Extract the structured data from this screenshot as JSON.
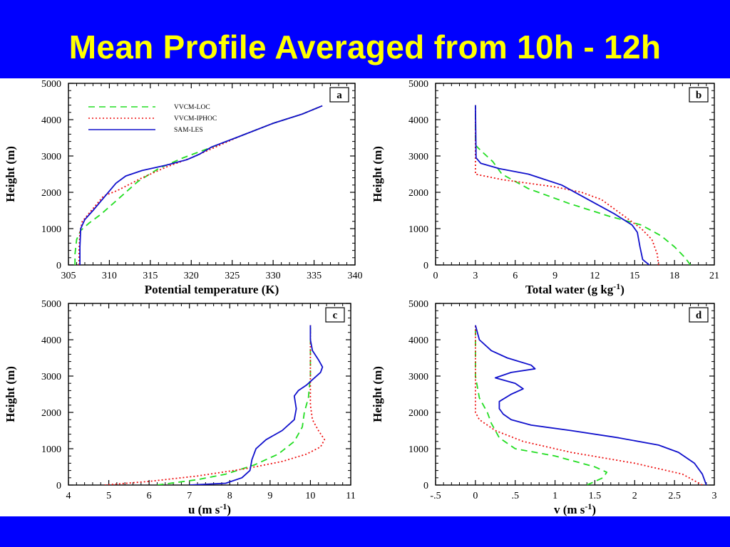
{
  "slide": {
    "title": "Mean Profile Averaged from 10h - 12h",
    "colors": {
      "banner": "#0000ff",
      "title": "#ffff00"
    }
  },
  "series_styles": [
    {
      "name": "VVCM-LOC",
      "color": "#22dd22",
      "dash": "9,6"
    },
    {
      "name": "VVCM-IPHOC",
      "color": "#ee1111",
      "dash": "2,3"
    },
    {
      "name": "SAM-LES",
      "color": "#1010cc",
      "dash": ""
    }
  ],
  "chart_data": [
    {
      "type": "line",
      "panel_label": "a",
      "xlabel": "Potential temperature (K)",
      "ylabel": "Height (m)",
      "xlim": [
        305,
        340
      ],
      "ylim": [
        0,
        5000
      ],
      "xticks": [
        "305",
        "310",
        "315",
        "320",
        "325",
        "330",
        "335",
        "340"
      ],
      "xtick_values": [
        305,
        310,
        315,
        320,
        325,
        330,
        335,
        340
      ],
      "yticks": [
        "0",
        "1000",
        "2000",
        "3000",
        "4000",
        "5000"
      ],
      "ytick_values": [
        0,
        1000,
        2000,
        3000,
        4000,
        5000
      ],
      "legend": "top-left",
      "series": [
        {
          "name": "VVCM-LOC",
          "points": [
            [
              305.8,
              0
            ],
            [
              305.8,
              300
            ],
            [
              306.0,
              700
            ],
            [
              306.5,
              950
            ],
            [
              307.5,
              1150
            ],
            [
              309.0,
              1400
            ],
            [
              311.0,
              1800
            ],
            [
              313.5,
              2300
            ],
            [
              316.0,
              2650
            ],
            [
              319.0,
              2950
            ],
            [
              322.0,
              3200
            ],
            [
              326.0,
              3550
            ],
            [
              330.0,
              3900
            ],
            [
              333.5,
              4150
            ],
            [
              336.0,
              4380
            ]
          ]
        },
        {
          "name": "VVCM-IPHOC",
          "points": [
            [
              306.3,
              0
            ],
            [
              306.3,
              400
            ],
            [
              306.4,
              900
            ],
            [
              306.7,
              1200
            ],
            [
              307.8,
              1500
            ],
            [
              309.3,
              1900
            ],
            [
              311.0,
              2050
            ],
            [
              314.0,
              2400
            ],
            [
              317.0,
              2700
            ],
            [
              320.0,
              2950
            ],
            [
              322.5,
              3200
            ],
            [
              326.0,
              3550
            ],
            [
              330.0,
              3900
            ],
            [
              333.5,
              4150
            ],
            [
              336.0,
              4380
            ]
          ]
        },
        {
          "name": "SAM-LES",
          "points": [
            [
              306.4,
              0
            ],
            [
              306.4,
              500
            ],
            [
              306.5,
              1000
            ],
            [
              307.0,
              1250
            ],
            [
              308.0,
              1500
            ],
            [
              309.5,
              1900
            ],
            [
              310.8,
              2250
            ],
            [
              312.0,
              2450
            ],
            [
              314.0,
              2600
            ],
            [
              317.0,
              2750
            ],
            [
              319.5,
              2900
            ],
            [
              321.0,
              3050
            ],
            [
              322.5,
              3250
            ],
            [
              326.0,
              3550
            ],
            [
              330.0,
              3900
            ],
            [
              333.5,
              4150
            ],
            [
              336.0,
              4380
            ]
          ]
        }
      ]
    },
    {
      "type": "line",
      "panel_label": "b",
      "xlabel": "Total water (g kg",
      "xlabel_sup": "-1",
      "xlabel_end": ")",
      "ylabel": "Height (m)",
      "xlim": [
        0,
        21
      ],
      "ylim": [
        0,
        5000
      ],
      "xticks": [
        "0",
        "3",
        "6",
        "9",
        "12",
        "15",
        "18",
        "21"
      ],
      "xtick_values": [
        0,
        3,
        6,
        9,
        12,
        15,
        18,
        21
      ],
      "yticks": [
        "0",
        "1000",
        "2000",
        "3000",
        "4000",
        "5000"
      ],
      "ytick_values": [
        0,
        1000,
        2000,
        3000,
        4000,
        5000
      ],
      "series": [
        {
          "name": "VVCM-LOC",
          "points": [
            [
              19.2,
              0
            ],
            [
              18.8,
              200
            ],
            [
              18.0,
              500
            ],
            [
              17.0,
              800
            ],
            [
              15.5,
              1100
            ],
            [
              13.0,
              1350
            ],
            [
              10.0,
              1700
            ],
            [
              7.0,
              2100
            ],
            [
              5.0,
              2500
            ],
            [
              4.3,
              2850
            ],
            [
              3.4,
              3150
            ],
            [
              3.0,
              3300
            ],
            [
              3.0,
              4400
            ]
          ]
        },
        {
          "name": "VVCM-IPHOC",
          "points": [
            [
              16.8,
              0
            ],
            [
              16.7,
              300
            ],
            [
              16.3,
              700
            ],
            [
              15.5,
              1000
            ],
            [
              14.0,
              1400
            ],
            [
              12.5,
              1800
            ],
            [
              11.0,
              2000
            ],
            [
              9.0,
              2150
            ],
            [
              5.0,
              2350
            ],
            [
              3.0,
              2500
            ],
            [
              3.0,
              4400
            ]
          ]
        },
        {
          "name": "SAM-LES",
          "points": [
            [
              16.1,
              0
            ],
            [
              15.6,
              150
            ],
            [
              15.4,
              500
            ],
            [
              15.2,
              900
            ],
            [
              14.8,
              1100
            ],
            [
              13.5,
              1400
            ],
            [
              11.5,
              1800
            ],
            [
              9.5,
              2200
            ],
            [
              7.0,
              2500
            ],
            [
              4.8,
              2650
            ],
            [
              3.4,
              2800
            ],
            [
              3.05,
              2950
            ],
            [
              3.0,
              4400
            ]
          ]
        }
      ]
    },
    {
      "type": "line",
      "panel_label": "c",
      "xlabel": "u (m s",
      "xlabel_sup": "-1",
      "xlabel_end": ")",
      "ylabel": "Height (m)",
      "xlim": [
        4,
        11
      ],
      "ylim": [
        0,
        5000
      ],
      "xticks": [
        "4",
        "5",
        "6",
        "7",
        "8",
        "9",
        "10",
        "11"
      ],
      "xtick_values": [
        4,
        5,
        6,
        7,
        8,
        9,
        10,
        11
      ],
      "yticks": [
        "0",
        "1000",
        "2000",
        "3000",
        "4000",
        "5000"
      ],
      "ytick_values": [
        0,
        1000,
        2000,
        3000,
        4000,
        5000
      ],
      "series": [
        {
          "name": "VVCM-LOC",
          "points": [
            [
              6.2,
              0
            ],
            [
              7.2,
              150
            ],
            [
              7.9,
              300
            ],
            [
              8.6,
              550
            ],
            [
              9.2,
              850
            ],
            [
              9.6,
              1200
            ],
            [
              9.8,
              1600
            ],
            [
              9.85,
              2000
            ],
            [
              9.95,
              2400
            ],
            [
              10.0,
              3000
            ],
            [
              10.0,
              4400
            ]
          ]
        },
        {
          "name": "VVCM-IPHOC",
          "points": [
            [
              4.9,
              0
            ],
            [
              6.0,
              100
            ],
            [
              7.2,
              250
            ],
            [
              8.4,
              450
            ],
            [
              9.3,
              650
            ],
            [
              9.9,
              850
            ],
            [
              10.25,
              1050
            ],
            [
              10.35,
              1250
            ],
            [
              10.2,
              1500
            ],
            [
              10.05,
              1800
            ],
            [
              10.0,
              2200
            ],
            [
              10.0,
              4400
            ]
          ]
        },
        {
          "name": "SAM-LES",
          "points": [
            [
              7.0,
              0
            ],
            [
              7.9,
              50
            ],
            [
              8.3,
              200
            ],
            [
              8.5,
              400
            ],
            [
              8.55,
              700
            ],
            [
              8.65,
              1000
            ],
            [
              8.9,
              1250
            ],
            [
              9.3,
              1500
            ],
            [
              9.6,
              1800
            ],
            [
              9.65,
              2100
            ],
            [
              9.6,
              2450
            ],
            [
              9.7,
              2600
            ],
            [
              9.9,
              2750
            ],
            [
              10.05,
              2900
            ],
            [
              10.25,
              3100
            ],
            [
              10.3,
              3250
            ],
            [
              10.2,
              3450
            ],
            [
              10.05,
              3700
            ],
            [
              10.0,
              4000
            ],
            [
              10.0,
              4400
            ]
          ]
        }
      ]
    },
    {
      "type": "line",
      "panel_label": "d",
      "xlabel": "v (m s",
      "xlabel_sup": "-1",
      "xlabel_end": ")",
      "ylabel": "Height (m)",
      "xlim": [
        -0.5,
        3
      ],
      "ylim": [
        0,
        5000
      ],
      "xticks": [
        "-.5",
        "0",
        ".5",
        "1",
        "1.5",
        "2",
        "2.5",
        "3"
      ],
      "xtick_values": [
        -0.5,
        0,
        0.5,
        1,
        1.5,
        2,
        2.5,
        3
      ],
      "yticks": [
        "0",
        "1000",
        "2000",
        "3000",
        "4000",
        "5000"
      ],
      "ytick_values": [
        0,
        1000,
        2000,
        3000,
        4000,
        5000
      ],
      "series": [
        {
          "name": "VVCM-LOC",
          "points": [
            [
              1.4,
              0
            ],
            [
              1.6,
              200
            ],
            [
              1.65,
              350
            ],
            [
              1.5,
              500
            ],
            [
              1.0,
              800
            ],
            [
              0.5,
              1000
            ],
            [
              0.3,
              1300
            ],
            [
              0.2,
              1700
            ],
            [
              0.15,
              2000
            ],
            [
              0.05,
              2400
            ],
            [
              0.0,
              3000
            ],
            [
              0.0,
              4400
            ]
          ]
        },
        {
          "name": "VVCM-IPHOC",
          "points": [
            [
              2.85,
              0
            ],
            [
              2.6,
              300
            ],
            [
              2.0,
              600
            ],
            [
              1.2,
              900
            ],
            [
              0.6,
              1200
            ],
            [
              0.25,
              1500
            ],
            [
              0.05,
              1800
            ],
            [
              0.0,
              2000
            ],
            [
              0.0,
              4400
            ]
          ]
        },
        {
          "name": "SAM-LES",
          "points": [
            [
              2.9,
              0
            ],
            [
              2.85,
              300
            ],
            [
              2.75,
              600
            ],
            [
              2.55,
              900
            ],
            [
              2.3,
              1100
            ],
            [
              1.8,
              1300
            ],
            [
              1.2,
              1500
            ],
            [
              0.7,
              1650
            ],
            [
              0.45,
              1800
            ],
            [
              0.35,
              1950
            ],
            [
              0.3,
              2100
            ],
            [
              0.3,
              2300
            ],
            [
              0.45,
              2500
            ],
            [
              0.6,
              2650
            ],
            [
              0.5,
              2800
            ],
            [
              0.25,
              2950
            ],
            [
              0.45,
              3100
            ],
            [
              0.75,
              3200
            ],
            [
              0.7,
              3300
            ],
            [
              0.4,
              3500
            ],
            [
              0.2,
              3700
            ],
            [
              0.05,
              4000
            ],
            [
              0.0,
              4400
            ]
          ]
        }
      ]
    }
  ]
}
